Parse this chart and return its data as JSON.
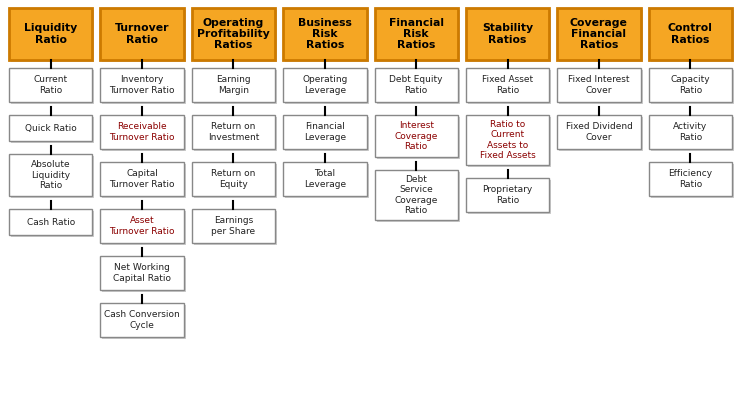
{
  "background_color": "#ffffff",
  "orange_color": "#F5A623",
  "orange_border": "#CC7A00",
  "white_box_color": "#ffffff",
  "white_box_border": "#888888",
  "shadow_color": "#cccccc",
  "connector_color": "#000000",
  "header_text_color": "#000000",
  "item_text_color_black": "#222222",
  "item_text_color_maroon": "#8B0000",
  "columns": [
    {
      "header": "Liquidity\nRatio",
      "items": [
        {
          "text": "Current\nRatio",
          "color": "black"
        },
        {
          "text": "Quick Ratio",
          "color": "black"
        },
        {
          "text": "Absolute\nLiquidity\nRatio",
          "color": "black"
        },
        {
          "text": "Cash Ratio",
          "color": "black"
        }
      ]
    },
    {
      "header": "Turnover\nRatio",
      "items": [
        {
          "text": "Inventory\nTurnover Ratio",
          "color": "black"
        },
        {
          "text": "Receivable\nTurnover Ratio",
          "color": "maroon"
        },
        {
          "text": "Capital\nTurnover Ratio",
          "color": "black"
        },
        {
          "text": "Asset\nTurnover Ratio",
          "color": "maroon"
        },
        {
          "text": "Net Working\nCapital Ratio",
          "color": "black"
        },
        {
          "text": "Cash Conversion\nCycle",
          "color": "black"
        }
      ]
    },
    {
      "header": "Operating\nProfitability\nRatios",
      "items": [
        {
          "text": "Earning\nMargin",
          "color": "black"
        },
        {
          "text": "Return on\nInvestment",
          "color": "black"
        },
        {
          "text": "Return on\nEquity",
          "color": "black"
        },
        {
          "text": "Earnings\nper Share",
          "color": "black"
        }
      ]
    },
    {
      "header": "Business\nRisk\nRatios",
      "items": [
        {
          "text": "Operating\nLeverage",
          "color": "black"
        },
        {
          "text": "Financial\nLeverage",
          "color": "black"
        },
        {
          "text": "Total\nLeverage",
          "color": "black"
        }
      ]
    },
    {
      "header": "Financial\nRisk\nRatios",
      "items": [
        {
          "text": "Debt Equity\nRatio",
          "color": "black"
        },
        {
          "text": "Interest\nCoverage\nRatio",
          "color": "maroon"
        },
        {
          "text": "Debt\nService\nCoverage\nRatio",
          "color": "black"
        }
      ]
    },
    {
      "header": "Stability\nRatios",
      "items": [
        {
          "text": "Fixed Asset\nRatio",
          "color": "black"
        },
        {
          "text": "Ratio to\nCurrent\nAssets to\nFixed Assets",
          "color": "maroon"
        },
        {
          "text": "Proprietary\nRatio",
          "color": "black"
        }
      ]
    },
    {
      "header": "Coverage\nFinancial\nRatios",
      "items": [
        {
          "text": "Fixed Interest\nCover",
          "color": "black"
        },
        {
          "text": "Fixed Dividend\nCover",
          "color": "black"
        }
      ]
    },
    {
      "header": "Control\nRatios",
      "items": [
        {
          "text": "Capacity\nRatio",
          "color": "black"
        },
        {
          "text": "Activity\nRatio",
          "color": "black"
        },
        {
          "text": "Efficiency\nRatio",
          "color": "black"
        }
      ]
    }
  ]
}
